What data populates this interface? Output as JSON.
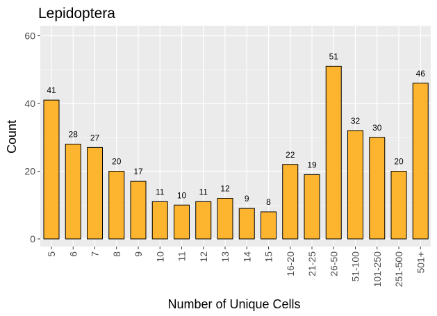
{
  "chart_data": {
    "type": "bar",
    "title": "Lepidoptera",
    "xlabel": "Number of Unique Cells",
    "ylabel": "Count",
    "categories": [
      "5",
      "6",
      "7",
      "8",
      "9",
      "10",
      "11",
      "12",
      "13",
      "14",
      "15",
      "16-20",
      "21-25",
      "26-50",
      "51-100",
      "101-250",
      "251-500",
      "501+"
    ],
    "values": [
      41,
      28,
      27,
      20,
      17,
      11,
      10,
      11,
      12,
      9,
      8,
      22,
      19,
      51,
      32,
      30,
      20,
      46
    ],
    "ylim": [
      0,
      63
    ],
    "yticks": [
      0,
      20,
      40,
      60
    ],
    "grid": true,
    "bar_color": "#FDB42E",
    "bar_border_color": "#000000",
    "panel_color": "#EBEBEB"
  }
}
